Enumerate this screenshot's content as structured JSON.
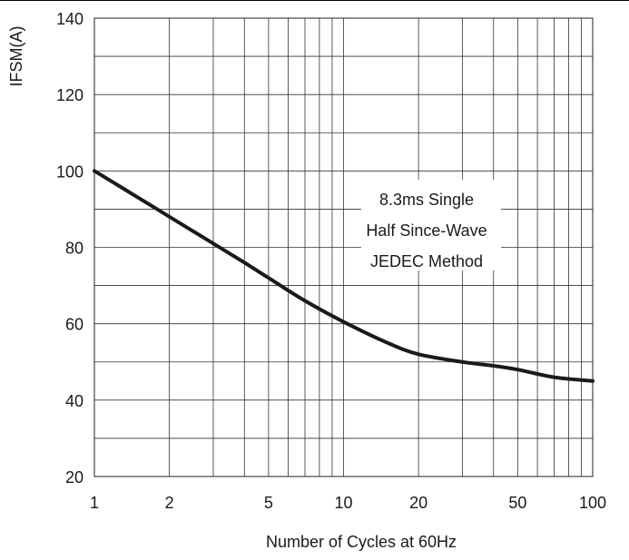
{
  "chart_data": {
    "type": "line",
    "xlabel": "Number of Cycles at 60Hz",
    "ylabel": "IFSM(A)",
    "x_scale": "log",
    "xlim": [
      1,
      100
    ],
    "ylim": [
      20,
      140
    ],
    "x_ticks": [
      {
        "value": 1,
        "label": "1"
      },
      {
        "value": 2,
        "label": "2"
      },
      {
        "value": 5,
        "label": "5"
      },
      {
        "value": 10,
        "label": "10"
      },
      {
        "value": 20,
        "label": "20"
      },
      {
        "value": 50,
        "label": "50"
      },
      {
        "value": 100,
        "label": "100"
      }
    ],
    "y_ticks": [
      {
        "value": 20,
        "label": "20"
      },
      {
        "value": 40,
        "label": "40"
      },
      {
        "value": 60,
        "label": "60"
      },
      {
        "value": 80,
        "label": "80"
      },
      {
        "value": 100,
        "label": "100"
      },
      {
        "value": 120,
        "label": "120"
      },
      {
        "value": 140,
        "label": "140"
      }
    ],
    "grid": true,
    "annotation": [
      "8.3ms Single",
      "Half Since-Wave",
      "JEDEC Method"
    ],
    "series": [
      {
        "x": [
          1,
          1.5,
          2,
          3,
          4,
          5,
          7,
          10,
          15,
          20,
          30,
          40,
          50,
          70,
          100
        ],
        "y": [
          100,
          93,
          88,
          81,
          76,
          72,
          66,
          60.5,
          55,
          52,
          50,
          49,
          48,
          46,
          45
        ],
        "color": "#1a1a1a"
      }
    ]
  }
}
